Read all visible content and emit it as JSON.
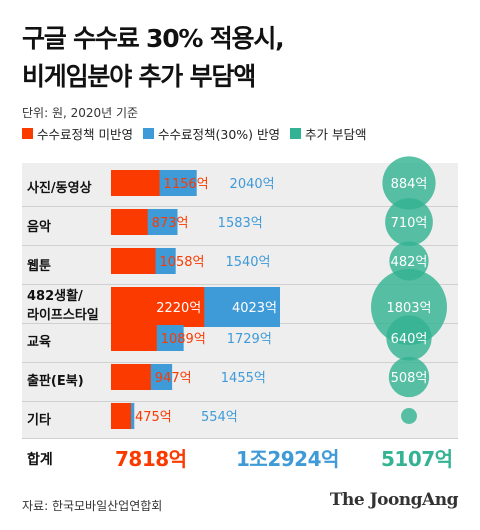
{
  "title_line1": "구글 수수료 30% 적용시,",
  "title_line2": "비게임분야 추가 부담액",
  "unit": "단위: 원, 2020년 기준",
  "legend": {
    "not_applied": "수수료정책 미반영",
    "applied": "수수료정책(30%) 반영",
    "extra": "추가 부담액"
  },
  "colors": {
    "not_applied": "#fb3a00",
    "applied": "#3f9ad8",
    "extra": "#33b393"
  },
  "chart_data": {
    "type": "bar",
    "unit": "억",
    "categories": [
      "사진/동영상",
      "음악",
      "웹툰",
      "482생활/\n라이프스타일",
      "교육",
      "출판(E북)",
      "기타"
    ],
    "series": [
      {
        "name": "수수료정책 미반영",
        "values": [
          1156,
          873,
          1058,
          2220,
          1089,
          947,
          475
        ],
        "labels": [
          "1156억",
          "873억",
          "1058억",
          "2220억",
          "1089억",
          "947억",
          "475억"
        ]
      },
      {
        "name": "수수료정책(30%) 반영",
        "values": [
          2040,
          1583,
          1540,
          4023,
          1729,
          1455,
          554
        ],
        "labels": [
          "2040억",
          "1583억",
          "1540억",
          "4023억",
          "1729억",
          "1455억",
          "554억"
        ]
      },
      {
        "name": "추가 부담액",
        "values": [
          884,
          710,
          482,
          1803,
          640,
          508,
          79
        ],
        "labels": [
          "884억",
          "710억",
          "482억",
          "1803억",
          "640억",
          "508억",
          ""
        ]
      }
    ]
  },
  "totals": {
    "label": "합계",
    "not_applied": "7818억",
    "applied": "1조2924억",
    "extra": "5107억"
  },
  "source": "자료: 한국모바일산업연합회",
  "brand": "The JoongAng"
}
